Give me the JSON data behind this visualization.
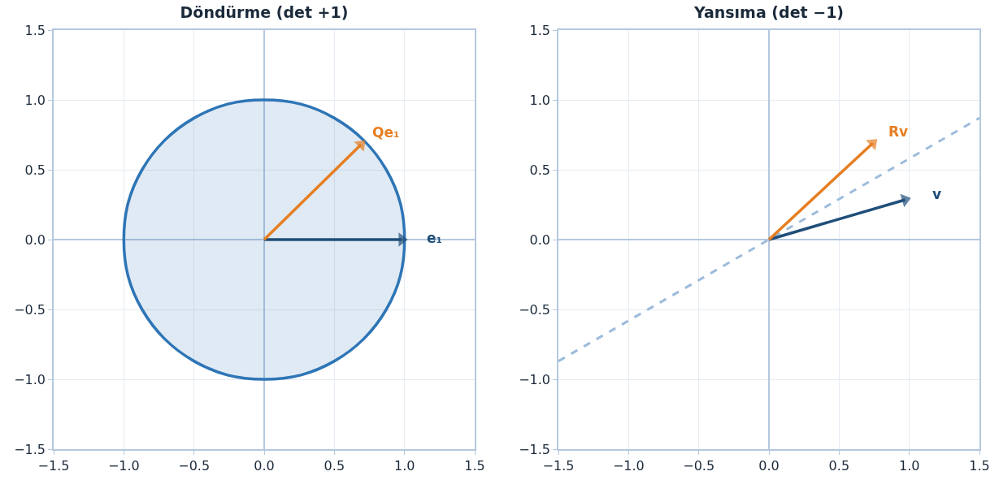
{
  "chart_data": [
    {
      "type": "area",
      "title": "Döndürme (det +1)",
      "xlim": [
        -1.5,
        1.5
      ],
      "ylim": [
        -1.5,
        1.5
      ],
      "xticks": [
        {
          "value": -1.5,
          "label": "−1.5"
        },
        {
          "value": -1,
          "label": "−1.0"
        },
        {
          "value": -0.5,
          "label": "−0.5"
        },
        {
          "value": 0,
          "label": "0.0"
        },
        {
          "value": 0.5,
          "label": "0.5"
        },
        {
          "value": 1,
          "label": "1.0"
        },
        {
          "value": 1.5,
          "label": "1.5"
        }
      ],
      "yticks": [
        {
          "value": -1.5,
          "label": "−1.5"
        },
        {
          "value": -1,
          "label": "−1.0"
        },
        {
          "value": -0.5,
          "label": "−0.5"
        },
        {
          "value": 0,
          "label": "0.0"
        },
        {
          "value": 0.5,
          "label": "0.5"
        },
        {
          "value": 1,
          "label": "1.0"
        },
        {
          "value": 1.5,
          "label": "1.5"
        }
      ],
      "grid": true,
      "series": [
        {
          "color": "#2e75b6",
          "x": [
            1,
            0.97,
            0.87,
            0.71,
            0.5,
            0.26,
            0,
            -0.26,
            -0.5,
            -0.71,
            -0.87,
            -0.97,
            -1,
            -0.97,
            -0.87,
            -0.71,
            -0.5,
            -0.26,
            0,
            0.26,
            0.5,
            0.71,
            0.87,
            0.97,
            1
          ],
          "values": [
            0,
            0.26,
            0.5,
            0.71,
            0.87,
            0.97,
            1,
            0.97,
            0.87,
            0.71,
            0.5,
            0.26,
            0,
            -0.26,
            -0.5,
            -0.71,
            -0.87,
            -0.97,
            -1,
            -0.97,
            -0.87,
            -0.71,
            -0.5,
            -0.26,
            0
          ]
        },
        {
          "type": "line",
          "name": "e₁",
          "color": "#1f4e79",
          "marker": "triangle",
          "x": [
            0,
            0.98
          ],
          "values": [
            0,
            0
          ]
        },
        {
          "type": "line",
          "name": "Qe₁",
          "color": "#e67e22",
          "marker": "triangle",
          "x": [
            0,
            0.69
          ],
          "values": [
            0,
            0.68
          ]
        }
      ],
      "legend": false
    },
    {
      "type": "line",
      "title": "Yansıma (det −1)",
      "xlim": [
        -1.5,
        1.5
      ],
      "ylim": [
        -1.5,
        1.5
      ],
      "xticks": [
        {
          "value": -1.5,
          "label": "−1.5"
        },
        {
          "value": -1,
          "label": "−1.0"
        },
        {
          "value": -0.5,
          "label": "−0.5"
        },
        {
          "value": 0,
          "label": "0.0"
        },
        {
          "value": 0.5,
          "label": "0.5"
        },
        {
          "value": 1,
          "label": "1.0"
        },
        {
          "value": 1.5,
          "label": "1.5"
        }
      ],
      "yticks": [
        {
          "value": -1.5,
          "label": "−1.5"
        },
        {
          "value": -1,
          "label": "−1.0"
        },
        {
          "value": -0.5,
          "label": "−0.5"
        },
        {
          "value": 0,
          "label": "0.0"
        },
        {
          "value": 0.5,
          "label": "0.5"
        },
        {
          "value": 1,
          "label": "1.0"
        },
        {
          "value": 1.5,
          "label": "1.5"
        }
      ],
      "grid": true,
      "line_style": "dashed",
      "series": [
        {
          "color": "#9dbcdb",
          "x": [
            -1.5,
            1.5
          ],
          "values": [
            -0.87,
            0.87
          ]
        },
        {
          "name": "v",
          "color": "#1f4e79",
          "line_style": "solid",
          "marker": "triangle",
          "x": [
            0,
            0.97
          ],
          "values": [
            0,
            0.285
          ]
        },
        {
          "name": "Rv",
          "color": "#e67e22",
          "line_style": "solid",
          "marker": "triangle",
          "x": [
            0,
            0.74
          ],
          "values": [
            0,
            0.69
          ]
        }
      ],
      "legend": false
    }
  ]
}
